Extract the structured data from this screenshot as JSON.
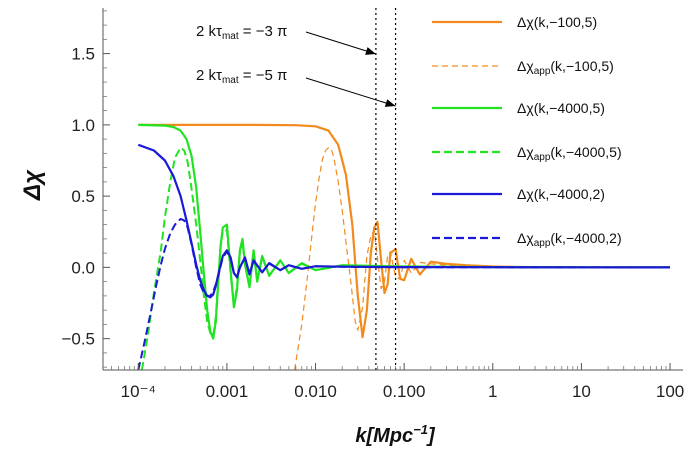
{
  "chart_data": {
    "type": "line",
    "xscale": "log",
    "xlim": [
      4e-05,
      140
    ],
    "ylim": [
      -0.72,
      1.82
    ],
    "xlabel": "k[Mpc⁻¹]",
    "ylabel": "Δχ",
    "grid": false,
    "legend_position": "top-right",
    "x_ticks": [
      {
        "value": 0.0001,
        "label": "10⁻⁴"
      },
      {
        "value": 0.001,
        "label": "0.001"
      },
      {
        "value": 0.01,
        "label": "0.010"
      },
      {
        "value": 0.1,
        "label": "0.100"
      },
      {
        "value": 1,
        "label": "1"
      },
      {
        "value": 10,
        "label": "10"
      },
      {
        "value": 100,
        "label": "100"
      }
    ],
    "y_ticks": [
      {
        "value": -0.5,
        "label": "−0.5"
      },
      {
        "value": 0.0,
        "label": "0.0"
      },
      {
        "value": 0.5,
        "label": "0.5"
      },
      {
        "value": 1.0,
        "label": "1.0"
      },
      {
        "value": 1.5,
        "label": "1.5"
      }
    ],
    "vlines": [
      0.048,
      0.08
    ],
    "annotations": [
      {
        "text": "2 kτmat = −3 π",
        "from": [
          0.00028,
          1.56
        ],
        "to": [
          0.048,
          1.41
        ]
      },
      {
        "text": "2 kτmat = −5 π",
        "from": [
          0.00028,
          1.29
        ],
        "to": [
          0.08,
          1.1
        ]
      }
    ],
    "series": [
      {
        "name": "Δχ(k,−100,5)",
        "color": "#f28a1d",
        "style": "solid",
        "width": 2.2,
        "x": [
          0.0001,
          0.002,
          0.006,
          0.01,
          0.014,
          0.018,
          0.022,
          0.026,
          0.03,
          0.034,
          0.038,
          0.042,
          0.046,
          0.05,
          0.055,
          0.06,
          0.065,
          0.07,
          0.08,
          0.09,
          0.1,
          0.12,
          0.15,
          0.2,
          0.3,
          0.5,
          1,
          2,
          5,
          10,
          100
        ],
        "y": [
          1.0,
          1.0,
          0.998,
          0.99,
          0.96,
          0.86,
          0.65,
          0.3,
          -0.2,
          -0.49,
          -0.3,
          0.1,
          0.28,
          0.32,
          0.05,
          -0.18,
          -0.12,
          0.1,
          0.13,
          -0.08,
          -0.09,
          0.06,
          -0.05,
          0.04,
          0.025,
          0.015,
          0.006,
          0.003,
          0.001,
          0.0005,
          0.0
        ]
      },
      {
        "name": "Δχapp(k,−100,5)",
        "color": "#f28a1d",
        "style": "dashed-thin",
        "width": 1.2,
        "x": [
          0.0058,
          0.007,
          0.008,
          0.009,
          0.01,
          0.011,
          0.012,
          0.013,
          0.014,
          0.015,
          0.016,
          0.018,
          0.02,
          0.022,
          0.025,
          0.028,
          0.03,
          0.034,
          0.038,
          0.042,
          0.046,
          0.05,
          0.055,
          0.06,
          0.065,
          0.07,
          0.08,
          0.09,
          0.1,
          0.12,
          0.15,
          0.2,
          0.3,
          0.5,
          1,
          2,
          5,
          10,
          100
        ],
        "y": [
          -0.72,
          -0.4,
          -0.1,
          0.2,
          0.45,
          0.63,
          0.76,
          0.82,
          0.84,
          0.83,
          0.78,
          0.6,
          0.4,
          0.18,
          -0.1,
          -0.38,
          -0.44,
          -0.28,
          0.08,
          0.22,
          0.26,
          0.06,
          -0.15,
          -0.1,
          0.08,
          0.11,
          -0.07,
          -0.08,
          0.05,
          -0.04,
          0.035,
          0.025,
          0.015,
          0.01,
          0.005,
          0.002,
          0.001,
          0.0005,
          0.0
        ]
      },
      {
        "name": "Δχ(k,−4000,5)",
        "color": "#22e322",
        "style": "solid",
        "width": 2.2,
        "x": [
          0.0001,
          0.0002,
          0.00025,
          0.0003,
          0.00035,
          0.0004,
          0.00045,
          0.0005,
          0.00055,
          0.0006,
          0.00065,
          0.0007,
          0.00075,
          0.0008,
          0.00085,
          0.0009,
          0.001,
          0.0011,
          0.0012,
          0.0013,
          0.0014,
          0.0015,
          0.0016,
          0.0018,
          0.002,
          0.0022,
          0.0025,
          0.003,
          0.004,
          0.005,
          0.007,
          0.01,
          0.02,
          0.05,
          0.1,
          1,
          10,
          100
        ],
        "y": [
          1.0,
          0.995,
          0.985,
          0.96,
          0.9,
          0.78,
          0.56,
          0.25,
          -0.05,
          -0.3,
          -0.45,
          -0.5,
          -0.38,
          -0.1,
          0.15,
          0.28,
          0.3,
          -0.02,
          -0.28,
          -0.16,
          0.12,
          0.2,
          0.02,
          -0.14,
          0.12,
          -0.1,
          0.08,
          -0.06,
          0.05,
          -0.04,
          0.03,
          -0.02,
          0.015,
          0.01,
          0.006,
          0.002,
          0.0005,
          0.0
        ]
      },
      {
        "name": "Δχapp(k,−4000,5)",
        "color": "#22e322",
        "style": "dashed",
        "width": 2.0,
        "x": [
          0.00011,
          0.00013,
          0.00015,
          0.00018,
          0.0002,
          0.00023,
          0.00026,
          0.0003,
          0.00033,
          0.00036,
          0.0004,
          0.00045,
          0.0005,
          0.00055,
          0.0006,
          0.00065,
          0.0007,
          0.00075,
          0.0008,
          0.00085,
          0.0009,
          0.001,
          0.0011,
          0.0012,
          0.0013,
          0.0014,
          0.0015,
          0.0016,
          0.0018,
          0.002,
          0.0022,
          0.0025,
          0.003,
          0.004,
          0.005,
          0.007,
          0.01,
          0.02,
          0.05,
          0.1,
          1,
          10,
          100
        ],
        "y": [
          -0.72,
          -0.45,
          -0.18,
          0.12,
          0.35,
          0.6,
          0.77,
          0.84,
          0.82,
          0.74,
          0.55,
          0.3,
          0.05,
          -0.2,
          -0.38,
          -0.46,
          -0.48,
          -0.35,
          -0.08,
          0.15,
          0.26,
          0.26,
          -0.04,
          -0.26,
          -0.14,
          0.11,
          0.18,
          0.02,
          -0.13,
          0.11,
          -0.09,
          0.07,
          -0.055,
          0.045,
          -0.035,
          0.025,
          -0.018,
          0.012,
          0.008,
          0.005,
          0.002,
          0.0005,
          0.0
        ]
      },
      {
        "name": "Δχ(k,−4000,2)",
        "color": "#1a1ad6",
        "style": "solid",
        "width": 2.2,
        "x": [
          0.0001,
          0.00015,
          0.0002,
          0.00025,
          0.0003,
          0.00035,
          0.0004,
          0.00045,
          0.0005,
          0.00055,
          0.0006,
          0.00065,
          0.0007,
          0.00075,
          0.0008,
          0.0009,
          0.001,
          0.0011,
          0.0012,
          0.0013,
          0.0014,
          0.0016,
          0.0018,
          0.002,
          0.0025,
          0.003,
          0.004,
          0.005,
          0.007,
          0.01,
          0.02,
          0.05,
          0.1,
          1,
          10,
          100
        ],
        "y": [
          0.86,
          0.82,
          0.75,
          0.64,
          0.5,
          0.33,
          0.17,
          0.02,
          -0.09,
          -0.16,
          -0.2,
          -0.21,
          -0.19,
          -0.13,
          -0.05,
          0.08,
          0.12,
          0.07,
          -0.04,
          -0.07,
          0.0,
          0.07,
          -0.05,
          0.05,
          -0.035,
          0.03,
          -0.02,
          0.015,
          -0.01,
          0.008,
          0.005,
          0.003,
          0.002,
          0.001,
          0.0005,
          0.0
        ]
      },
      {
        "name": "Δχapp(k,−4000,2)",
        "color": "#1a1ad6",
        "style": "dashed",
        "width": 2.0,
        "x": [
          0.0001,
          0.00012,
          0.00014,
          0.00016,
          0.00018,
          0.0002,
          0.00023,
          0.00026,
          0.0003,
          0.00033,
          0.00036,
          0.0004,
          0.00045,
          0.0005,
          0.00055,
          0.0006,
          0.00065,
          0.0007,
          0.00075,
          0.0008,
          0.0009,
          0.001,
          0.0011,
          0.0012,
          0.0013,
          0.0014,
          0.0016,
          0.0018,
          0.002,
          0.0025,
          0.003,
          0.004,
          0.005,
          0.007,
          0.01,
          0.02,
          0.05,
          0.1,
          1,
          10,
          100
        ],
        "y": [
          -0.72,
          -0.5,
          -0.3,
          -0.12,
          0.02,
          0.13,
          0.24,
          0.3,
          0.34,
          0.33,
          0.28,
          0.16,
          0.0,
          -0.12,
          -0.18,
          -0.2,
          -0.2,
          -0.17,
          -0.12,
          -0.06,
          0.07,
          0.11,
          0.06,
          -0.04,
          -0.065,
          0.0,
          0.065,
          -0.045,
          0.045,
          -0.03,
          0.025,
          -0.018,
          0.013,
          -0.009,
          0.007,
          0.004,
          0.002,
          0.001,
          0.0005,
          0.0002,
          0.0
        ]
      }
    ]
  }
}
